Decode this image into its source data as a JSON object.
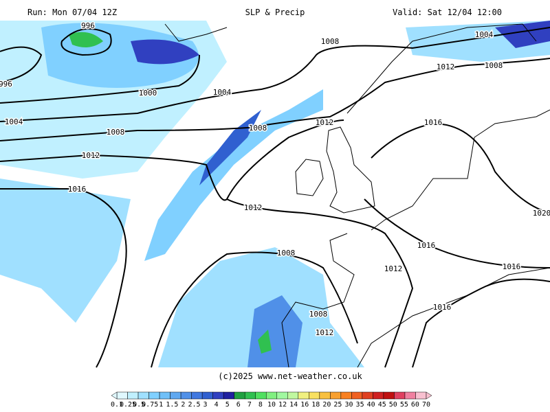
{
  "header": {
    "run": "Run: Mon 07/04 12Z",
    "title": "SLP & Precip",
    "valid": "Valid: Sat 12/04 12:00"
  },
  "isobar_labels": [
    "996",
    "996",
    "1000",
    "1004",
    "1004",
    "1008",
    "1012",
    "1016",
    "1008",
    "1004",
    "1012",
    "1008",
    "1008",
    "1012",
    "1016",
    "1012",
    "1016",
    "1020",
    "1008",
    "1012",
    "1016",
    "1016",
    "1008",
    "1012"
  ],
  "footer": "(c)2025 www.net-weather.co.uk",
  "colorbar": {
    "labels": [
      "0.1",
      "0.25",
      "0.5",
      "0.75",
      "1",
      "1.5",
      "2",
      "2.5",
      "3",
      "4",
      "5",
      "6",
      "7",
      "8",
      "10",
      "12",
      "14",
      "16",
      "18",
      "20",
      "25",
      "30",
      "35",
      "40",
      "45",
      "50",
      "55",
      "60",
      "70"
    ],
    "colors": [
      "#e0f8ff",
      "#c0f0ff",
      "#a0e0ff",
      "#80d0ff",
      "#70c0f8",
      "#60a8f0",
      "#5090e8",
      "#4078e0",
      "#3060d0",
      "#3040c0",
      "#2020a0",
      "#20a040",
      "#30c050",
      "#50e060",
      "#80f080",
      "#a0f8a0",
      "#c0f8a0",
      "#f0f080",
      "#f8e060",
      "#f8c040",
      "#f8a030",
      "#f88020",
      "#f06020",
      "#e04020",
      "#d02020",
      "#c01010",
      "#e04060",
      "#f080a0",
      "#f8c0d0"
    ]
  }
}
